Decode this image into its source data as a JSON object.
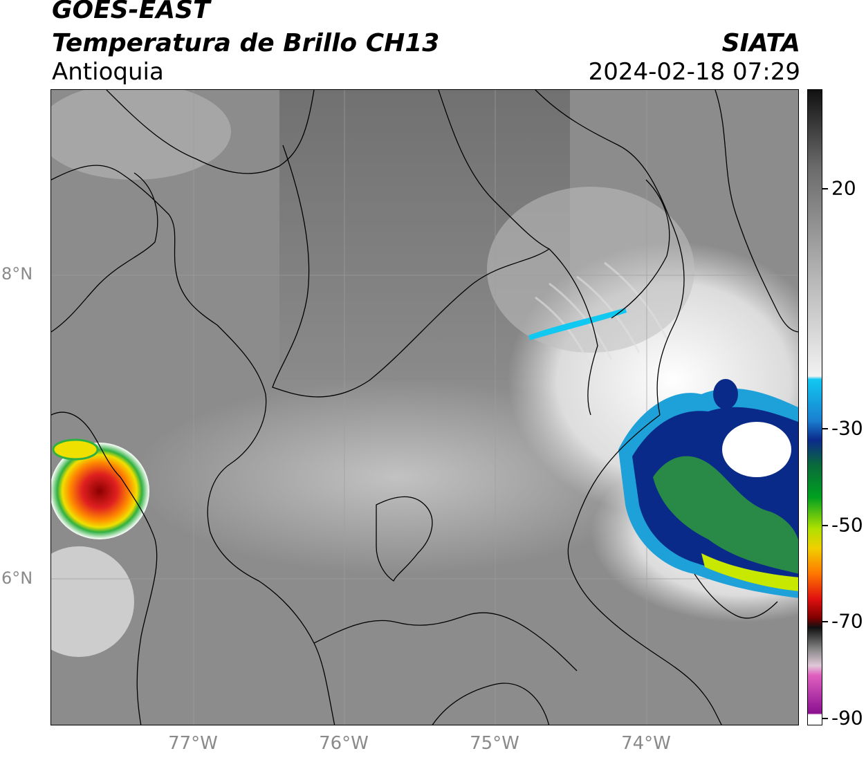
{
  "header": {
    "satellite": "GOES-EAST",
    "product": "Temperatura de Brillo CH13",
    "region": "Antioquia",
    "organization": "SIATA",
    "datetime": "2024-02-18 07:29"
  },
  "map": {
    "lat_labels": [
      "8°N",
      "6°N"
    ],
    "lon_labels": [
      "77°W",
      "76°W",
      "75°W",
      "74°W"
    ],
    "colors": {
      "background_gray": "#8a8a8a",
      "boundary_line": "#000000",
      "gridline": "#a0a0a0",
      "warm_core": "#8b0000",
      "cold_cloud_blue": "#0a2a8a",
      "cloud_cyan": "#1ea0d8",
      "cloud_green": "#2f9a3a"
    }
  },
  "colorbar": {
    "labels": [
      "20",
      "-30",
      "-50",
      "-70",
      "-90"
    ],
    "colors": {
      "top": "#1a1a1a",
      "gray_mid": "#9a9a9a",
      "white": "#ffffff",
      "cyan": "#11c8f0",
      "blue": "#0b2a8c",
      "green": "#00a020",
      "yellow": "#e8e800",
      "red": "#e01010",
      "black": "#111111",
      "pink": "#e060c0",
      "purple": "#8a1090"
    }
  }
}
